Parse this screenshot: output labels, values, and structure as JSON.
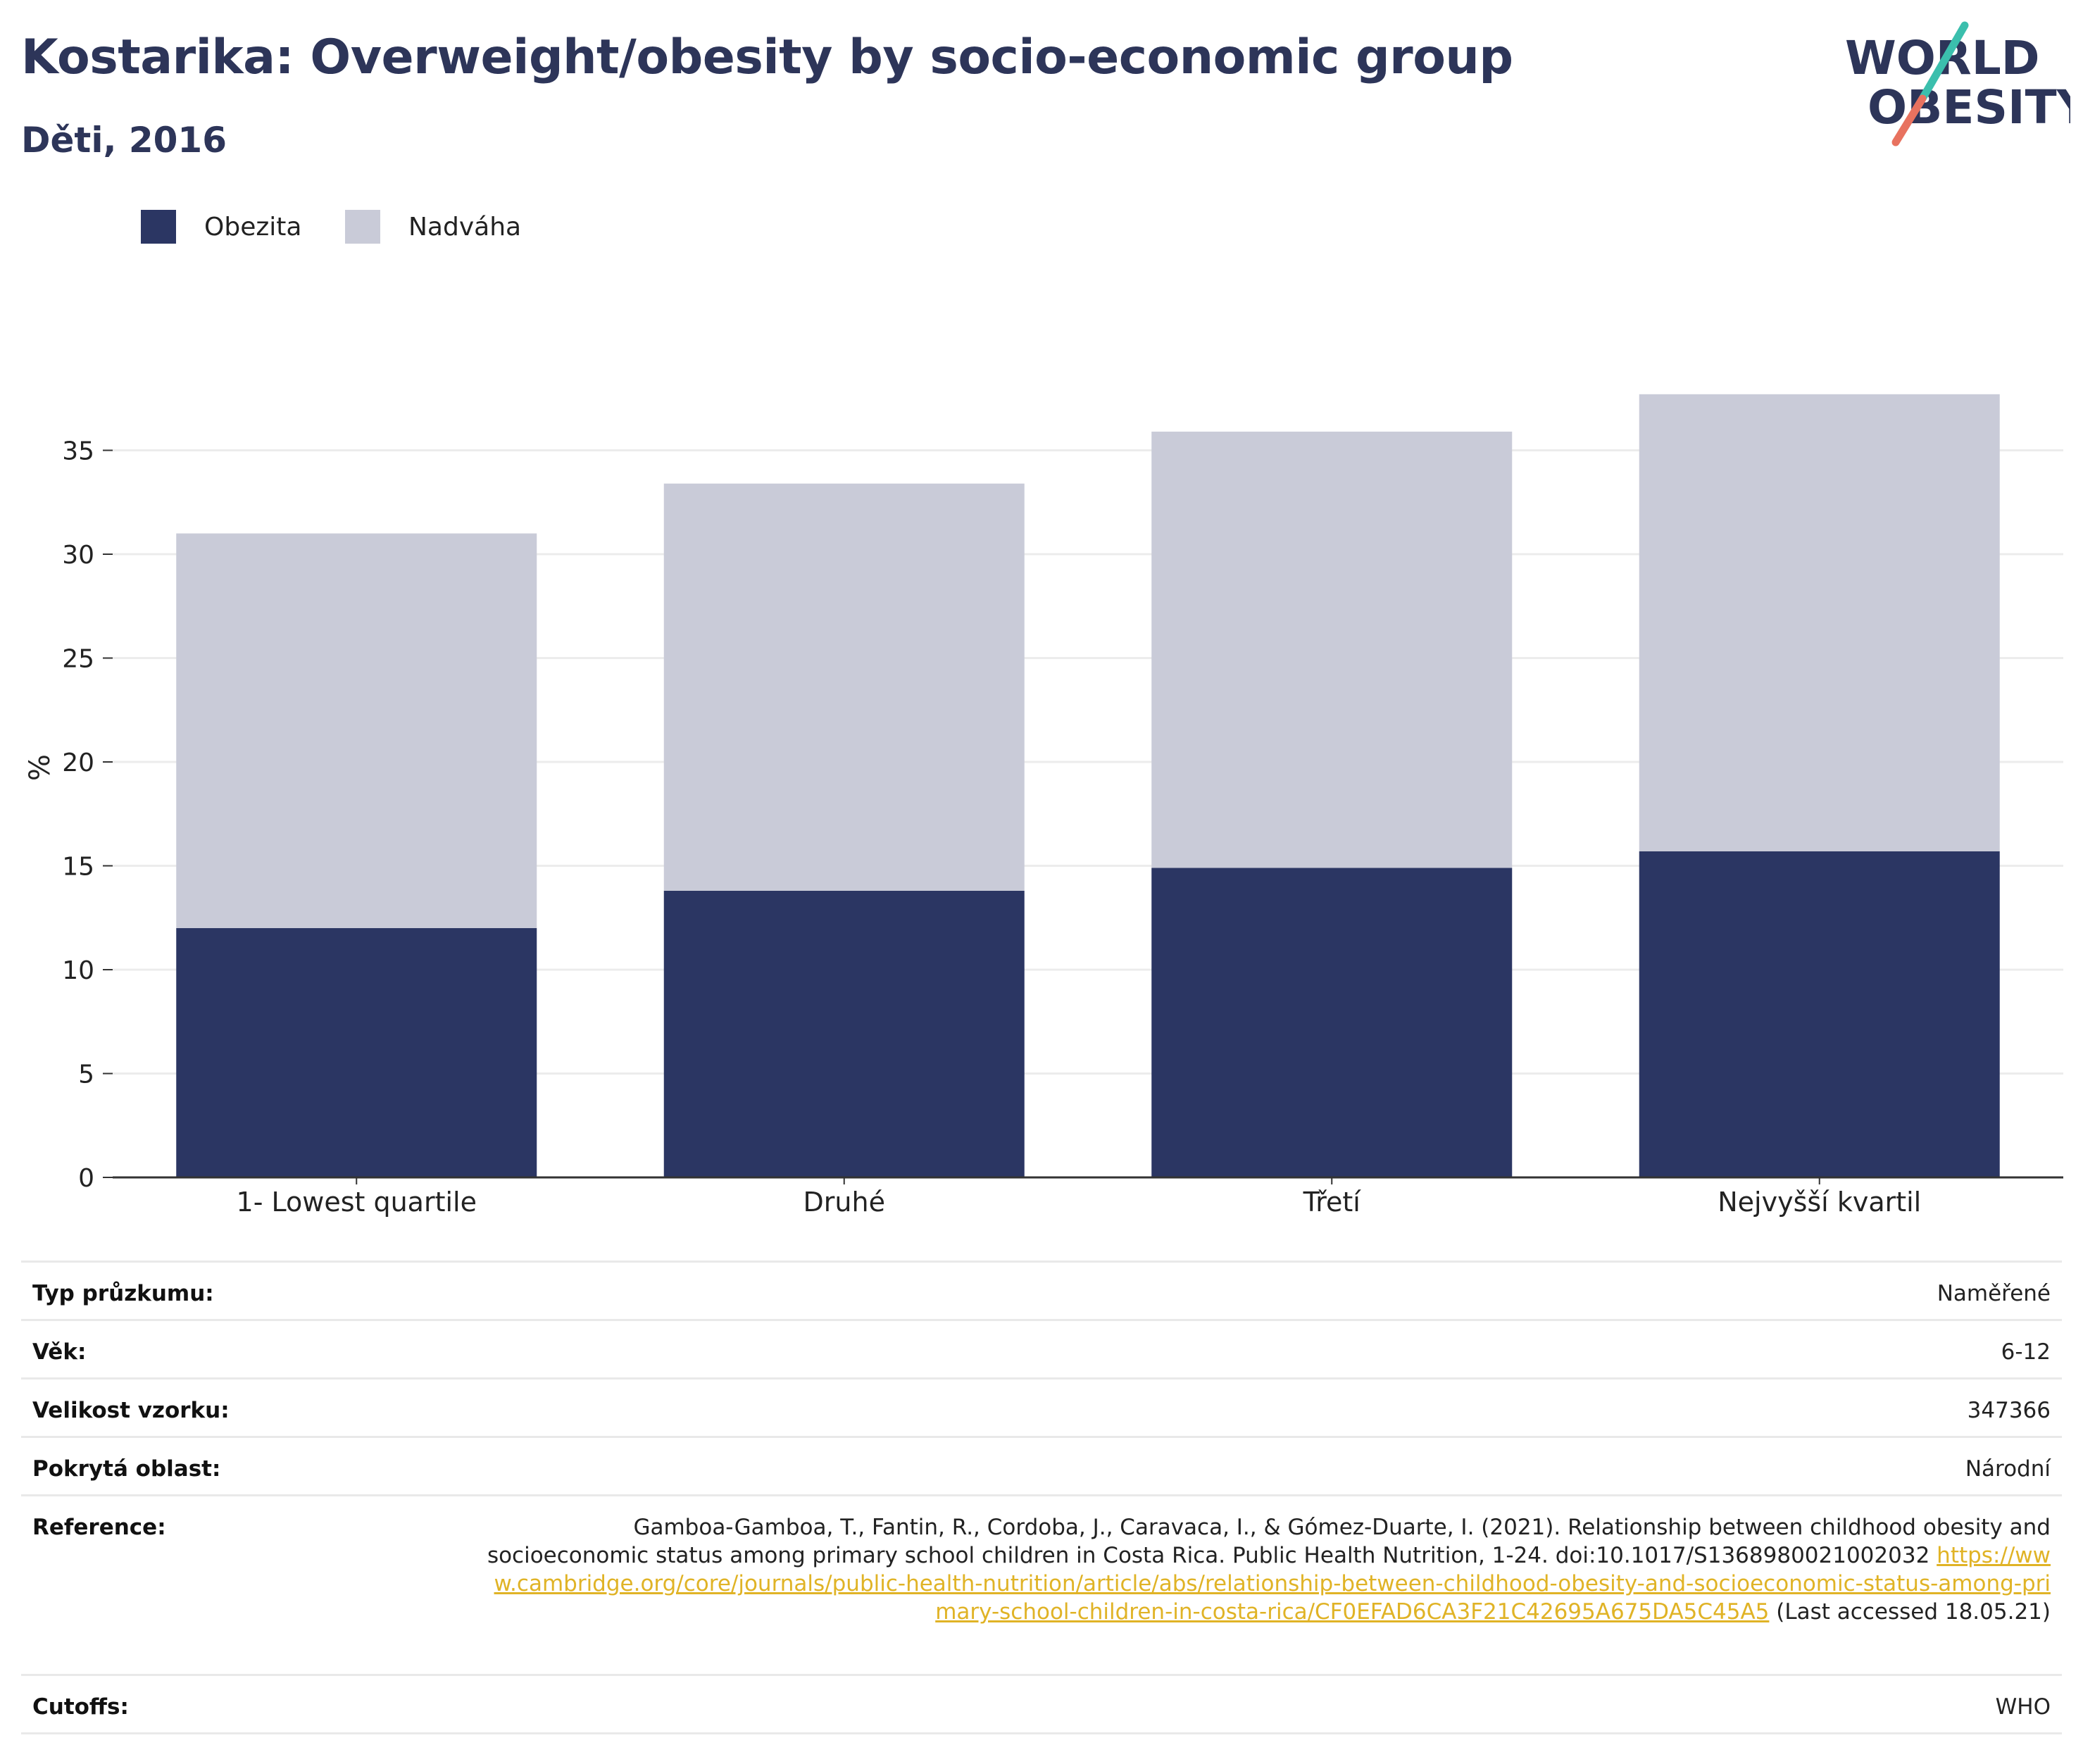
{
  "header": {
    "title": "Kostarika: Overweight/obesity by socio-economic group",
    "subtitle": "Děti, 2016"
  },
  "logo": {
    "line1": "WORLD",
    "line2": "OBESITY",
    "colors": {
      "text": "#2d3559",
      "slash_top": "#3bbfad",
      "slash_bottom": "#e8725f"
    }
  },
  "colors": {
    "obesity": "#2b3663",
    "overweight": "#c9cbd8",
    "grid": "#ececec",
    "axis": "#333333",
    "title": "#2d3559",
    "link": "#e0b326"
  },
  "legend": [
    {
      "label": "Obezita",
      "color": "#2b3663"
    },
    {
      "label": "Nadváha",
      "color": "#c9cbd8"
    }
  ],
  "chart_data": {
    "type": "bar",
    "stacked": true,
    "categories": [
      "1- Lowest quartile",
      "Druhé",
      "Třetí",
      "Nejvyšší kvartil"
    ],
    "series": [
      {
        "name": "Obezita",
        "values": [
          12.0,
          13.8,
          14.9,
          15.7
        ]
      },
      {
        "name": "Nadváha",
        "values": [
          19.0,
          19.6,
          21.0,
          22.0
        ]
      }
    ],
    "ylabel": "%",
    "xlabel": "",
    "ylim": [
      0,
      39
    ],
    "yticks": [
      0,
      5,
      10,
      15,
      20,
      25,
      30,
      35
    ],
    "grid": true,
    "legend_position": "top-left"
  },
  "info": {
    "survey_type": {
      "label": "Typ průzkumu:",
      "value": "Naměřené"
    },
    "age": {
      "label": "Věk:",
      "value": "6-12"
    },
    "sample_size": {
      "label": "Velikost vzorku:",
      "value": "347366"
    },
    "area": {
      "label": "Pokrytá oblast:",
      "value": "Národní"
    },
    "reference": {
      "label": "Reference:",
      "text": "Gamboa-Gamboa, T., Fantin, R., Cordoba, J., Caravaca, I., & Gómez-Duarte, I. (2021). Relationship between childhood obesity and socioeconomic status among primary school children in Costa Rica. Public Health Nutrition, 1-24. doi:10.1017/S1368980021002032",
      "link": "https://www.cambridge.org/core/journals/public-health-nutrition/article/abs/relationship-between-childhood-obesity-and-socioeconomic-status-among-primary-school-children-in-costa-rica/CF0EFAD6CA3F21C42695A675DA5C45A5",
      "suffix": "(Last accessed 18.05.21)"
    },
    "cutoffs": {
      "label": "Cutoffs:",
      "value": "WHO"
    }
  }
}
